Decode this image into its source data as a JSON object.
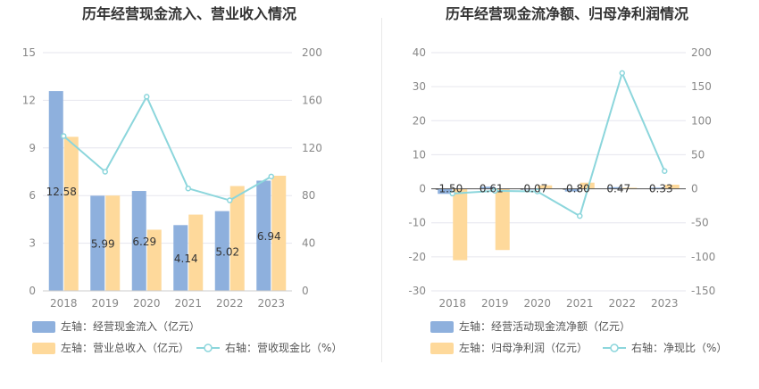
{
  "charts": [
    {
      "title": "历年经营现金流入、营业收入情况",
      "legend": [
        {
          "label": "左轴：经营现金流入（亿元）",
          "kind": "bar",
          "color": "#8eb0dd"
        },
        {
          "label": "左轴：营业总收入（亿元）",
          "kind": "bar",
          "color": "#fed99b"
        },
        {
          "label": "右轴：营收现金比（%）",
          "kind": "line",
          "color": "#8cd6dc"
        }
      ]
    },
    {
      "title": "历年经营现金流净额、归母净利润情况",
      "legend": [
        {
          "label": "左轴：经营活动现金流净额（亿元）",
          "kind": "bar",
          "color": "#8eb0dd"
        },
        {
          "label": "左轴：归母净利润（亿元）",
          "kind": "bar",
          "color": "#fed99b"
        },
        {
          "label": "右轴：净现比（%）",
          "kind": "line",
          "color": "#8cd6dc"
        }
      ]
    }
  ],
  "chart_data": [
    {
      "type": "bar",
      "title": "历年经营现金流入、营业收入情况",
      "categories": [
        "2018",
        "2019",
        "2020",
        "2021",
        "2022",
        "2023"
      ],
      "y_left": {
        "min": 0,
        "max": 15,
        "ticks": [
          "0",
          "3",
          "6",
          "9",
          "12",
          "15"
        ]
      },
      "y_right": {
        "min": 0,
        "max": 200,
        "ticks": [
          "0",
          "40",
          "80",
          "120",
          "160",
          "200"
        ]
      },
      "series": [
        {
          "name": "经营现金流入（亿元）",
          "axis": "left",
          "kind": "bar",
          "color": "#8eb0dd",
          "values": [
            12.58,
            5.99,
            6.29,
            4.14,
            5.02,
            6.94
          ],
          "labels": [
            "12.58",
            "5.99",
            "6.29",
            "4.14",
            "5.02",
            "6.94"
          ]
        },
        {
          "name": "营业总收入（亿元）",
          "axis": "left",
          "kind": "bar",
          "color": "#fed99b",
          "values": [
            9.7,
            6.0,
            3.85,
            4.8,
            6.6,
            7.25
          ]
        },
        {
          "name": "营收现金比（%）",
          "axis": "right",
          "kind": "line",
          "color": "#8cd6dc",
          "values": [
            130,
            100,
            163,
            86,
            76,
            96
          ]
        }
      ]
    },
    {
      "type": "bar",
      "title": "历年经营现金流净额、归母净利润情况",
      "categories": [
        "2018",
        "2019",
        "2020",
        "2021",
        "2022",
        "2023"
      ],
      "y_left": {
        "min": -30,
        "max": 40,
        "ticks": [
          "-30",
          "-20",
          "-10",
          "0",
          "10",
          "20",
          "30",
          "40"
        ]
      },
      "y_right": {
        "min": -150,
        "max": 200,
        "ticks": [
          "-150",
          "-100",
          "-50",
          "0",
          "50",
          "100",
          "150",
          "200"
        ]
      },
      "series": [
        {
          "name": "经营活动现金流净额（亿元）",
          "axis": "left",
          "kind": "bar",
          "color": "#8eb0dd",
          "values": [
            -1.5,
            0.61,
            -0.07,
            -0.8,
            0.47,
            0.33
          ],
          "labels": [
            "-1.50",
            "0.61",
            "-0.07",
            "-0.80",
            "0.47",
            "0.33"
          ]
        },
        {
          "name": "归母净利润（亿元）",
          "axis": "left",
          "kind": "bar",
          "color": "#fed99b",
          "values": [
            -21,
            -18,
            1.0,
            1.8,
            0.3,
            1.2
          ]
        },
        {
          "name": "净现比（%）",
          "axis": "right",
          "kind": "line",
          "color": "#8cd6dc",
          "values": [
            -7,
            -3,
            -4,
            -40,
            170,
            26
          ]
        }
      ]
    }
  ]
}
